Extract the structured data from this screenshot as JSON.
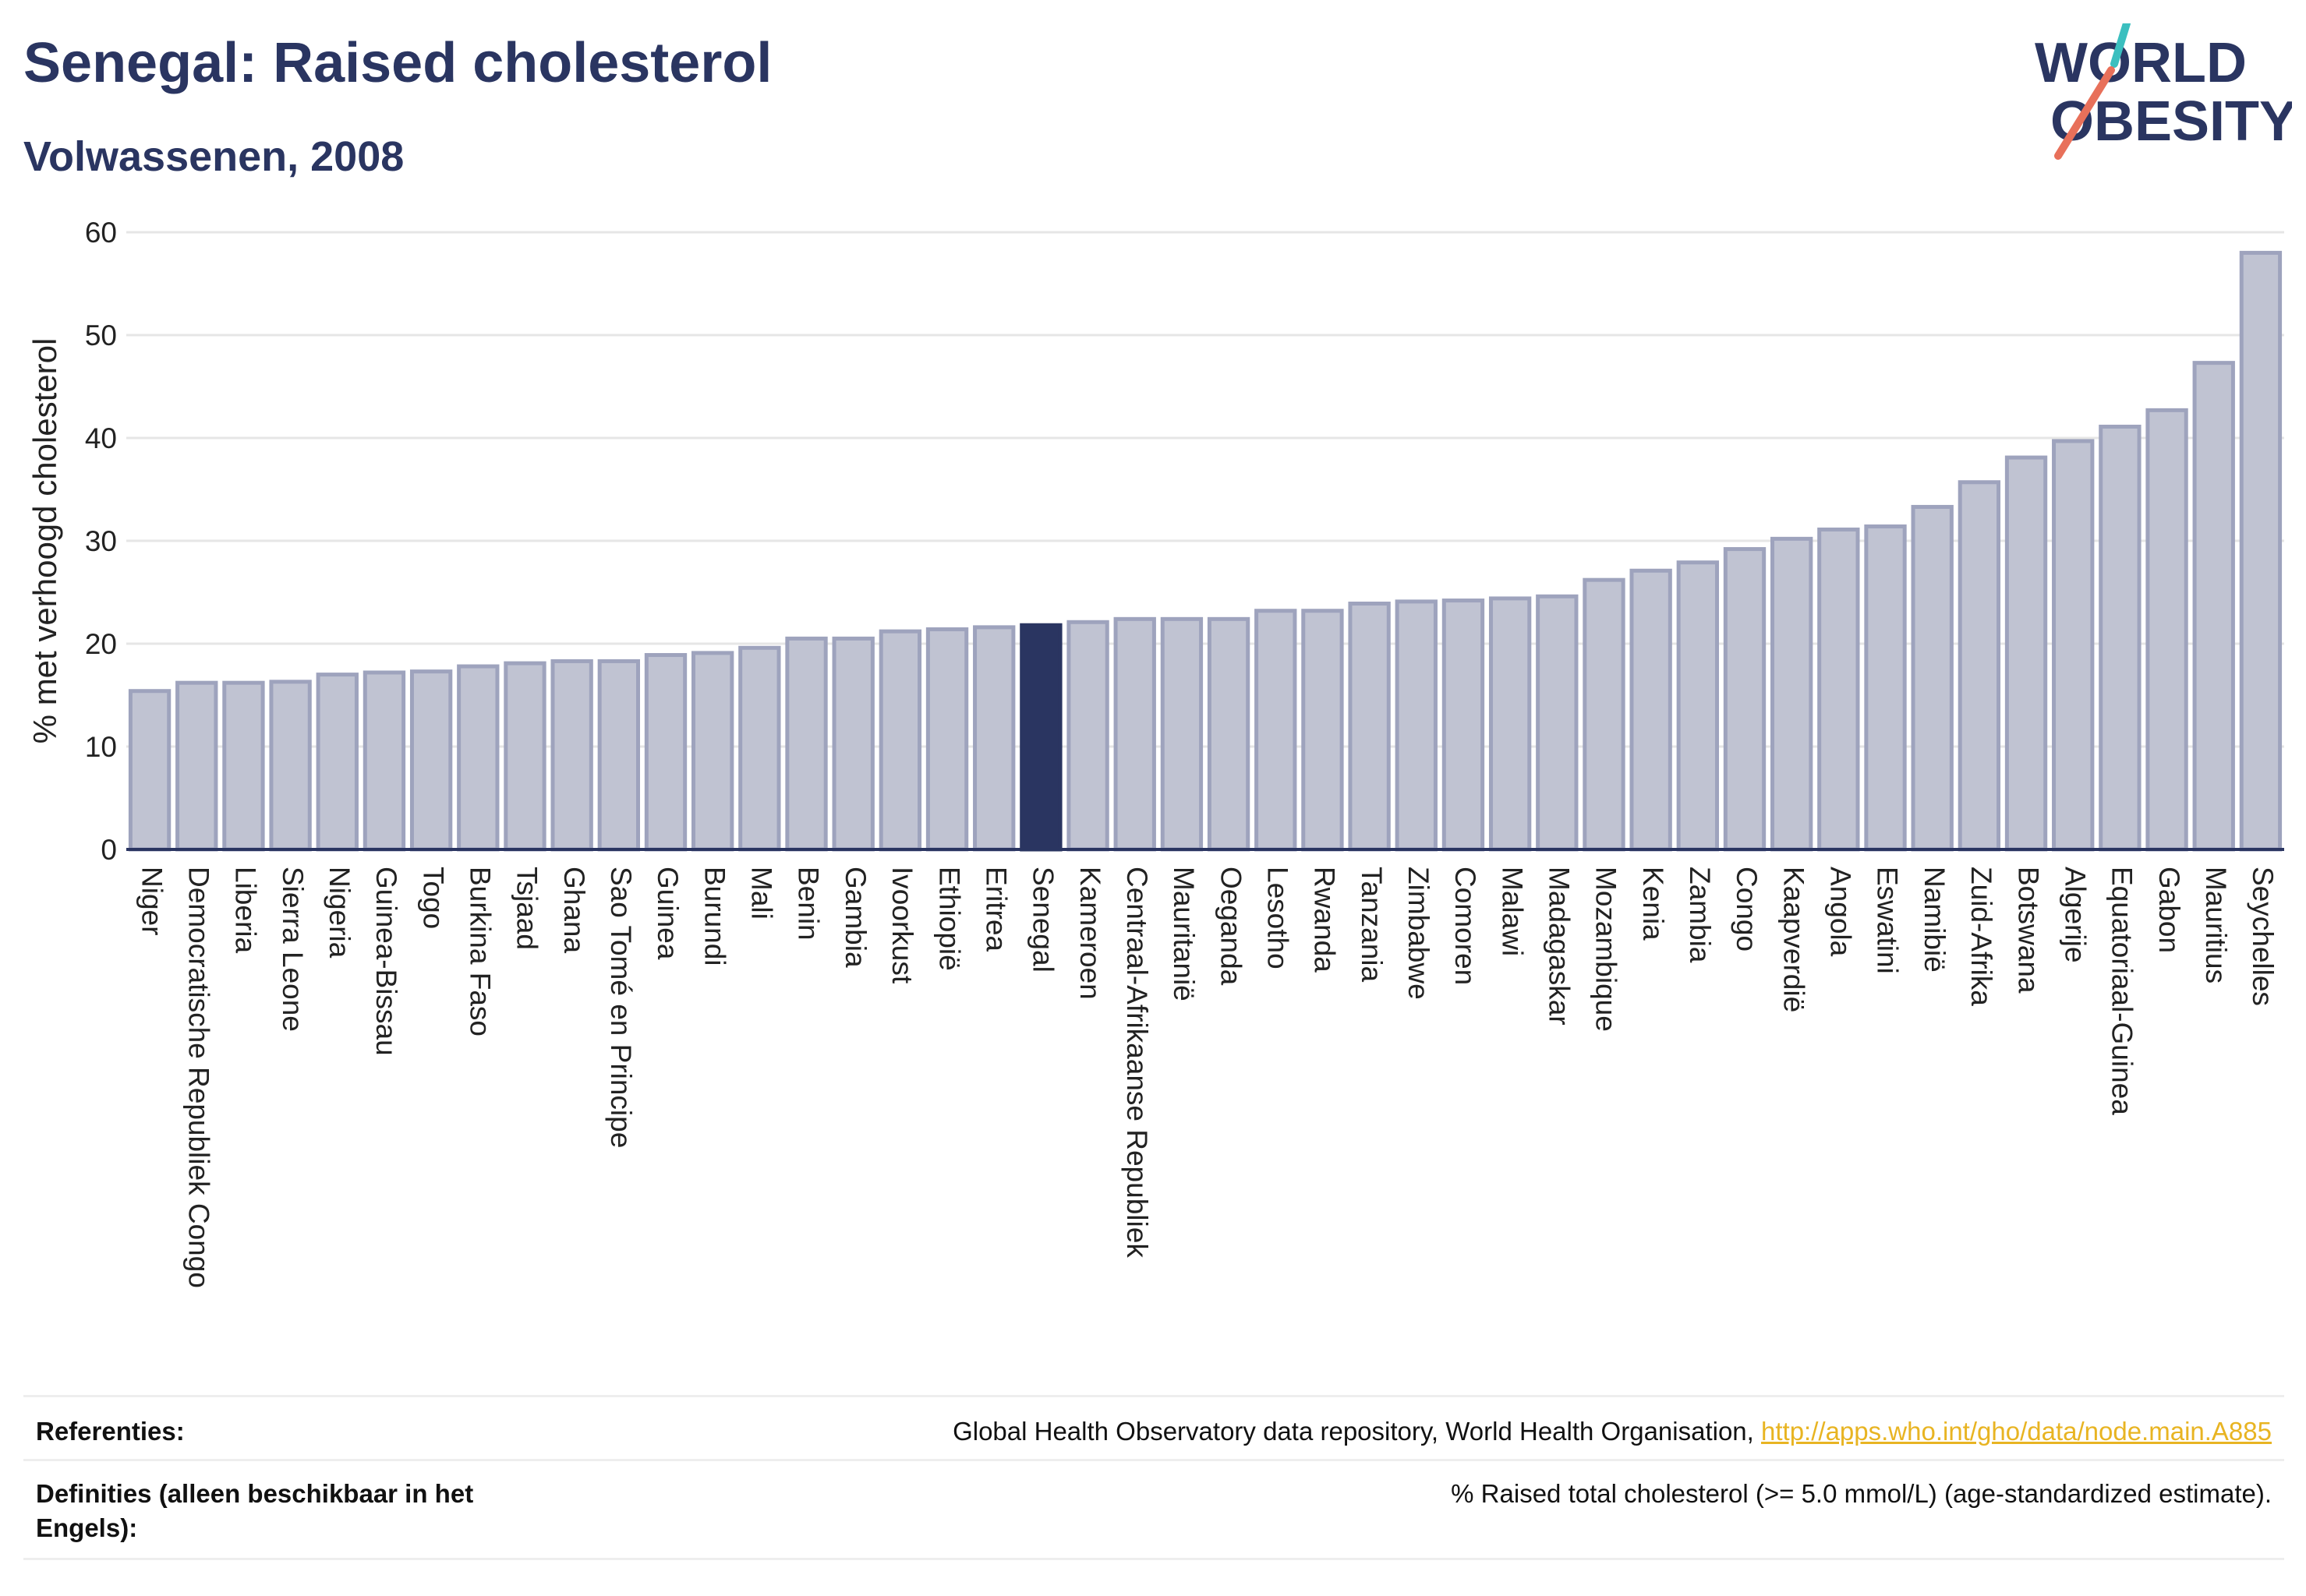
{
  "header": {
    "title": "Senegal: Raised cholesterol",
    "subtitle": "Volwassenen, 2008",
    "logo_line1": "WORLD",
    "logo_line2": "OBESITY"
  },
  "chart_data": {
    "type": "bar",
    "ylabel": "% met verhoogd cholesterol",
    "xlabel": "",
    "ylim": [
      0,
      60
    ],
    "yticks": [
      0,
      10,
      20,
      30,
      40,
      50,
      60
    ],
    "grid": true,
    "highlight": "Senegal",
    "colors": {
      "bar": "#c0c3d2",
      "bar_border": "#9ea3bd",
      "highlight": "#2a3561",
      "grid": "#e6e6e6",
      "axis": "#2a3561"
    },
    "categories": [
      "Niger",
      "Democratische Republiek Congo",
      "Liberia",
      "Sierra Leone",
      "Nigeria",
      "Guinea-Bissau",
      "Togo",
      "Burkina Faso",
      "Tsjaad",
      "Ghana",
      "Sao Tomé en Principe",
      "Guinea",
      "Burundi",
      "Mali",
      "Benin",
      "Gambia",
      "Ivoorkust",
      "Ethiopië",
      "Eritrea",
      "Senegal",
      "Kameroen",
      "Centraal-Afrikaanse Republiek",
      "Mauritanië",
      "Oeganda",
      "Lesotho",
      "Rwanda",
      "Tanzania",
      "Zimbabwe",
      "Comoren",
      "Malawi",
      "Madagaskar",
      "Mozambique",
      "Kenia",
      "Zambia",
      "Congo",
      "Kaapverdië",
      "Angola",
      "Eswatini",
      "Namibië",
      "Zuid-Afrika",
      "Botswana",
      "Algerije",
      "Equatoriaal-Guinea",
      "Gabon",
      "Mauritius",
      "Seychelles"
    ],
    "values": [
      15.4,
      16.2,
      16.2,
      16.3,
      17.0,
      17.2,
      17.3,
      17.8,
      18.1,
      18.3,
      18.3,
      18.9,
      19.1,
      19.6,
      20.5,
      20.5,
      21.2,
      21.4,
      21.6,
      21.8,
      22.1,
      22.4,
      22.4,
      22.4,
      23.2,
      23.2,
      23.9,
      24.1,
      24.2,
      24.4,
      24.6,
      26.2,
      27.1,
      27.9,
      29.2,
      30.2,
      31.1,
      31.4,
      33.3,
      35.7,
      38.1,
      39.7,
      41.1,
      42.7,
      47.3,
      58.0
    ]
  },
  "references": {
    "ref_label": "Referenties:",
    "ref_text": "Global Health Observatory data repository, World Health Organisation, ",
    "ref_link": "http://apps.who.int/gho/data/node.main.A885",
    "def_label": "Definities (alleen beschikbaar in het Engels):",
    "def_text": "% Raised total cholesterol (>= 5.0 mmol/L) (age-standardized estimate)."
  }
}
